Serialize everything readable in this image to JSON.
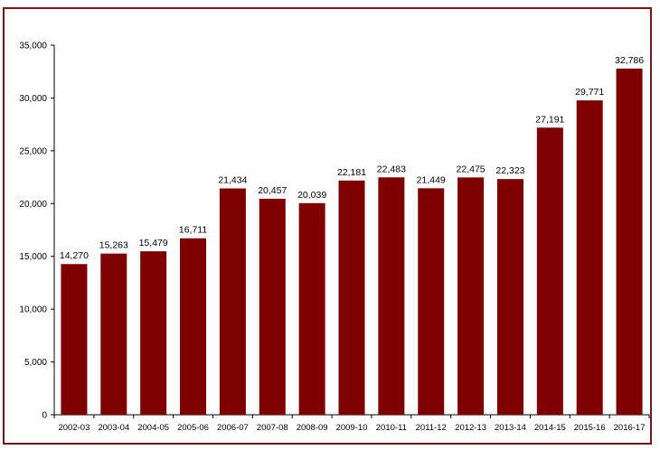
{
  "chart_data": {
    "type": "bar",
    "categories": [
      "2002-03",
      "2003-04",
      "2004-05",
      "2005-06",
      "2006-07",
      "2007-08",
      "2008-09",
      "2009-10",
      "2010-11",
      "2011-12",
      "2012-13",
      "2013-14",
      "2014-15",
      "2015-16",
      "2016-17"
    ],
    "values": [
      14270,
      15263,
      15479,
      16711,
      21434,
      20457,
      20039,
      22181,
      22483,
      21449,
      22475,
      22323,
      27191,
      29771,
      32786
    ],
    "value_labels": [
      "14,270",
      "15,263",
      "15,479",
      "16,711",
      "21,434",
      "20,457",
      "20,039",
      "22,181",
      "22,483",
      "21,449",
      "22,475",
      "22,323",
      "27,191",
      "29,771",
      "32,786"
    ],
    "y_ticks": [
      0,
      5000,
      10000,
      15000,
      20000,
      25000,
      30000,
      35000
    ],
    "y_tick_labels": [
      "0",
      "5,000",
      "10,000",
      "15,000",
      "20,000",
      "25,000",
      "30,000",
      "35,000"
    ],
    "ylim": [
      0,
      35000
    ],
    "grid": false,
    "legend": "none",
    "colors": {
      "bar": "#7f0000",
      "frame": "#7f1416",
      "axis": "#000000"
    }
  }
}
